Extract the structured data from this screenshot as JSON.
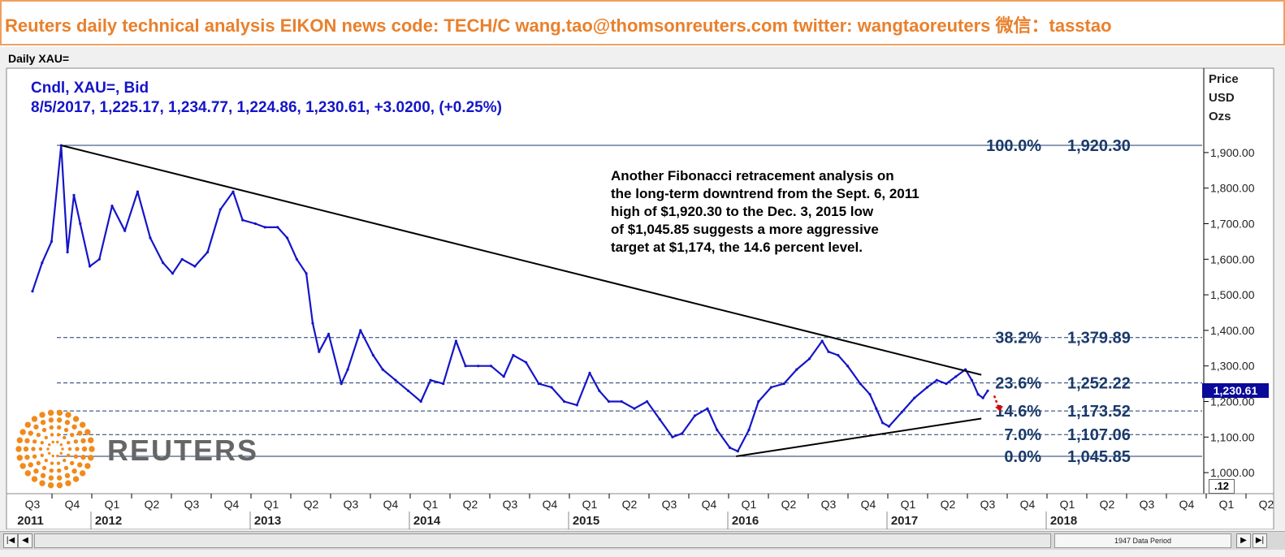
{
  "banner": {
    "text": "Reuters daily technical analysis  EIKON news code: TECH/C  wang.tao@thomsonreuters.com  twitter:  wangtaoreuters    微信：tasstao"
  },
  "panel": {
    "title": "Daily XAU="
  },
  "legend": {
    "line1": "Cndl, XAU=, Bid",
    "line2": "8/5/2017, 1,225.17, 1,234.77, 1,224.86, 1,230.61, +3.0200, (+0.25%)"
  },
  "axis": {
    "price_unit_lines": [
      "Price",
      "USD",
      "Ozs"
    ],
    "y_ticks": [
      "1,900.00",
      "1,800.00",
      "1,700.00",
      "1,600.00",
      "1,500.00",
      "1,400.00",
      "1,300.00",
      "1,200.00",
      "1,100.00",
      "1,000.00"
    ],
    "scale_label": ".12",
    "last_price": "1,230.61"
  },
  "note": {
    "lines": [
      "Another Fibonacci retracement analysis on",
      "the long-term downtrend from the Sept. 6, 2011",
      "high of $1,920.30 to the Dec. 3, 2015 low",
      "of $1,045.85 suggests a more aggressive",
      "target at $1,174, the 14.6 percent level."
    ]
  },
  "logo": {
    "text": "REUTERS"
  },
  "scrollbar": {
    "label": "1947 Data Period"
  },
  "colors": {
    "banner_text": "#e9802c",
    "series": "#1515c8",
    "fib_label": "#1a3a6a",
    "arrow": "#e00000"
  },
  "chart_data": {
    "type": "line",
    "title": "Daily XAU=",
    "ylabel": "Price USD Ozs",
    "ylim": [
      980,
      1950
    ],
    "x_quarters": [
      "Q3",
      "Q4",
      "Q1",
      "Q2",
      "Q3",
      "Q4",
      "Q1",
      "Q2",
      "Q3",
      "Q4",
      "Q1",
      "Q2",
      "Q3",
      "Q4",
      "Q1",
      "Q2",
      "Q3",
      "Q4",
      "Q1",
      "Q2",
      "Q3",
      "Q4",
      "Q1",
      "Q2",
      "Q3",
      "Q4",
      "Q1",
      "Q2",
      "Q3",
      "Q4",
      "Q1",
      "Q2",
      "Q3",
      "Q4"
    ],
    "x_years": [
      "2011",
      "2012",
      "2013",
      "2014",
      "2015",
      "2016",
      "2017",
      "2018"
    ],
    "fib_levels": [
      {
        "pct": "100.0%",
        "value": 1920.3,
        "label": "1,920.30"
      },
      {
        "pct": "38.2%",
        "value": 1379.89,
        "label": "1,379.89"
      },
      {
        "pct": "23.6%",
        "value": 1252.22,
        "label": "1,252.22"
      },
      {
        "pct": "14.6%",
        "value": 1173.52,
        "label": "1,173.52"
      },
      {
        "pct": "7.0%",
        "value": 1107.06,
        "label": "1,107.06"
      },
      {
        "pct": "0.0%",
        "value": 1045.85,
        "label": "1,045.85"
      }
    ],
    "series": [
      {
        "t": [
          2011.5,
          2011.56,
          2011.62,
          2011.68,
          2011.72,
          2011.76,
          2011.8,
          2011.86,
          2011.92,
          2012.0,
          2012.08,
          2012.16,
          2012.24,
          2012.32,
          2012.38,
          2012.44,
          2012.52,
          2012.6,
          2012.68,
          2012.76,
          2012.82,
          2012.9,
          2012.96,
          2013.04,
          2013.1,
          2013.16,
          2013.22,
          2013.26,
          2013.3,
          2013.36,
          2013.44,
          2013.48,
          2013.56,
          2013.64,
          2013.7,
          2013.78,
          2013.86,
          2013.94,
          2014.0,
          2014.08,
          2014.16,
          2014.22,
          2014.3,
          2014.38,
          2014.46,
          2014.52,
          2014.6,
          2014.68,
          2014.76,
          2014.84,
          2014.92,
          2015.0,
          2015.06,
          2015.12,
          2015.2,
          2015.28,
          2015.36,
          2015.44,
          2015.52,
          2015.58,
          2015.66,
          2015.74,
          2015.8,
          2015.88,
          2015.93,
          2016.0,
          2016.06,
          2016.14,
          2016.22,
          2016.3,
          2016.38,
          2016.46,
          2016.5,
          2016.56,
          2016.62,
          2016.7,
          2016.76,
          2016.8,
          2016.84,
          2016.88,
          2016.96,
          2017.04,
          2017.12,
          2017.18,
          2017.24,
          2017.3,
          2017.36,
          2017.4,
          2017.44,
          2017.47,
          2017.5
        ],
        "values": [
          1510,
          1590,
          1650,
          1920,
          1620,
          1780,
          1700,
          1580,
          1600,
          1750,
          1680,
          1790,
          1660,
          1590,
          1560,
          1600,
          1580,
          1620,
          1740,
          1790,
          1710,
          1700,
          1690,
          1690,
          1660,
          1600,
          1560,
          1420,
          1340,
          1390,
          1250,
          1290,
          1400,
          1330,
          1290,
          1260,
          1230,
          1200,
          1260,
          1250,
          1370,
          1300,
          1300,
          1300,
          1270,
          1330,
          1310,
          1250,
          1240,
          1200,
          1190,
          1280,
          1230,
          1200,
          1200,
          1180,
          1200,
          1150,
          1100,
          1110,
          1160,
          1180,
          1120,
          1070,
          1060,
          1120,
          1200,
          1240,
          1250,
          1290,
          1320,
          1370,
          1340,
          1330,
          1300,
          1250,
          1220,
          1180,
          1140,
          1130,
          1170,
          1210,
          1240,
          1260,
          1250,
          1270,
          1290,
          1260,
          1220,
          1210,
          1230
        ]
      }
    ],
    "trendlines": [
      {
        "from": [
          2011.68,
          1920.3
        ],
        "to": [
          2017.46,
          1275
        ]
      },
      {
        "from": [
          2015.92,
          1045.85
        ],
        "to": [
          2017.46,
          1152
        ]
      }
    ],
    "grid": true,
    "legend_position": "top-left"
  }
}
